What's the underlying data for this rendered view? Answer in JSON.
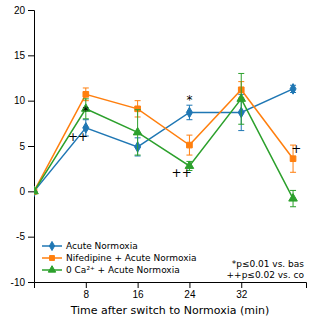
{
  "chart_data": {
    "type": "line",
    "x_label": "Time after switch to Normoxia (min)",
    "x": [
      0,
      8,
      16,
      24,
      32,
      40
    ],
    "series": [
      {
        "name": "Acute Normoxia",
        "marker": "diamond",
        "values": [
          0,
          7.0,
          4.9,
          8.7,
          8.7,
          11.3
        ],
        "errors": [
          0,
          0.9,
          1.0,
          0.8,
          2.0,
          0.4
        ]
      },
      {
        "name": "Nifedipine + Acute Normoxia",
        "marker": "square",
        "values": [
          0,
          10.7,
          9.1,
          5.1,
          11.2,
          3.6
        ],
        "errors": [
          0,
          0.7,
          0.9,
          1.1,
          0.9,
          1.5
        ]
      },
      {
        "name": "0 Ca²⁺ + Acute Normoxia",
        "marker": "triangle",
        "values": [
          0,
          9.1,
          6.5,
          2.8,
          10.2,
          -0.8
        ],
        "errors": [
          0,
          1.1,
          2.5,
          0.5,
          2.8,
          0.9
        ]
      }
    ],
    "xlim": [
      0,
      42
    ],
    "ylim": [
      -10,
      20
    ],
    "xticks": [
      8,
      16,
      24,
      32
    ],
    "yticks": [
      -10,
      -5,
      0,
      5,
      10,
      15,
      20
    ],
    "grid": false,
    "legend": "lower left",
    "annotations": [
      {
        "text": "*",
        "x": 8,
        "y": 8.4
      },
      {
        "text": "++",
        "x": 6.8,
        "y": 5.5
      },
      {
        "text": "*",
        "x": 24,
        "y": 9.6
      },
      {
        "text": "++",
        "x": 22.8,
        "y": 1.6
      },
      {
        "text": "+",
        "x": 40.5,
        "y": 4.2
      },
      {
        "text": "*p≤0.01 vs. bas"
      },
      {
        "text": "++p≤0.02 vs. co"
      }
    ]
  }
}
